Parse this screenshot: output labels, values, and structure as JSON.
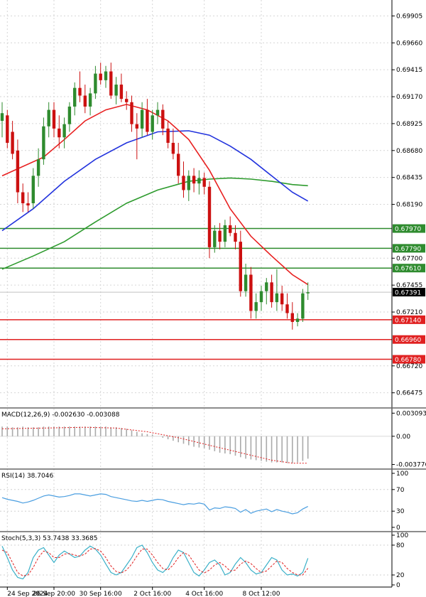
{
  "chart_data": {
    "type": "candlestick",
    "price_panel": {
      "ylim": [
        0.6635,
        0.7005
      ],
      "y_ticks": [
        "0.69905",
        "0.69660",
        "0.69415",
        "0.69170",
        "0.68925",
        "0.68680",
        "0.68435",
        "0.68190",
        "0.67700",
        "0.67455",
        "0.67210",
        "0.66720",
        "0.66475"
      ],
      "y_tick_values": [
        0.69905,
        0.6966,
        0.69415,
        0.6917,
        0.68925,
        0.6868,
        0.68435,
        0.6819,
        0.677,
        0.67455,
        0.6721,
        0.6672,
        0.66475
      ],
      "current_price": "0.67391",
      "current_price_value": 0.67391,
      "resistance_levels": [
        {
          "label": "0.67970",
          "value": 0.6797,
          "color": "#2e8b2e"
        },
        {
          "label": "0.67790",
          "value": 0.6779,
          "color": "#2e8b2e"
        },
        {
          "label": "0.67610",
          "value": 0.6761,
          "color": "#2e8b2e"
        }
      ],
      "support_levels": [
        {
          "label": "0.67140",
          "value": 0.6714,
          "color": "#e02020"
        },
        {
          "label": "0.66960",
          "value": 0.6696,
          "color": "#e02020"
        },
        {
          "label": "0.66780",
          "value": 0.6678,
          "color": "#e02020"
        }
      ],
      "candles": [
        [
          0.6895,
          0.6912,
          0.688,
          0.6902
        ],
        [
          0.69,
          0.6905,
          0.687,
          0.6875
        ],
        [
          0.6885,
          0.6895,
          0.686,
          0.6865
        ],
        [
          0.6868,
          0.6878,
          0.682,
          0.683
        ],
        [
          0.683,
          0.6838,
          0.6812,
          0.682
        ],
        [
          0.682,
          0.683,
          0.6812,
          0.6818
        ],
        [
          0.682,
          0.6852,
          0.6815,
          0.6845
        ],
        [
          0.6845,
          0.687,
          0.6835,
          0.686
        ],
        [
          0.686,
          0.6898,
          0.6855,
          0.689
        ],
        [
          0.689,
          0.6912,
          0.688,
          0.6905
        ],
        [
          0.6905,
          0.6912,
          0.688,
          0.6888
        ],
        [
          0.6888,
          0.69,
          0.687,
          0.688
        ],
        [
          0.688,
          0.6898,
          0.687,
          0.6892
        ],
        [
          0.6892,
          0.6912,
          0.6885,
          0.6908
        ],
        [
          0.6908,
          0.693,
          0.69,
          0.6925
        ],
        [
          0.6925,
          0.694,
          0.6912,
          0.6918
        ],
        [
          0.6918,
          0.6928,
          0.6902,
          0.6908
        ],
        [
          0.6908,
          0.6925,
          0.69,
          0.692
        ],
        [
          0.692,
          0.6945,
          0.6915,
          0.6938
        ],
        [
          0.6938,
          0.6948,
          0.6928,
          0.6932
        ],
        [
          0.6932,
          0.6945,
          0.6925,
          0.694
        ],
        [
          0.694,
          0.6948,
          0.6915,
          0.6918
        ],
        [
          0.6918,
          0.6935,
          0.691,
          0.6928
        ],
        [
          0.6928,
          0.6938,
          0.6912,
          0.6915
        ],
        [
          0.6915,
          0.6922,
          0.6905,
          0.6912
        ],
        [
          0.6912,
          0.6918,
          0.6885,
          0.6892
        ],
        [
          0.6892,
          0.6902,
          0.686,
          0.6888
        ],
        [
          0.6888,
          0.6912,
          0.688,
          0.6905
        ],
        [
          0.6905,
          0.6915,
          0.6882,
          0.6885
        ],
        [
          0.6885,
          0.6905,
          0.6878,
          0.69
        ],
        [
          0.69,
          0.6912,
          0.6892,
          0.6905
        ],
        [
          0.6905,
          0.691,
          0.6882,
          0.6888
        ],
        [
          0.6888,
          0.6895,
          0.687,
          0.6875
        ],
        [
          0.6875,
          0.6888,
          0.686,
          0.6865
        ],
        [
          0.6865,
          0.6875,
          0.6838,
          0.6845
        ],
        [
          0.6845,
          0.6858,
          0.6825,
          0.6832
        ],
        [
          0.6832,
          0.685,
          0.6822,
          0.6845
        ],
        [
          0.6845,
          0.6852,
          0.683,
          0.6838
        ],
        [
          0.6838,
          0.685,
          0.6828,
          0.6843
        ],
        [
          0.6843,
          0.6848,
          0.6828,
          0.6835
        ],
        [
          0.6835,
          0.684,
          0.677,
          0.678
        ],
        [
          0.678,
          0.68,
          0.6775,
          0.6795
        ],
        [
          0.6795,
          0.6802,
          0.6778,
          0.6785
        ],
        [
          0.6785,
          0.6805,
          0.678,
          0.68
        ],
        [
          0.68,
          0.6808,
          0.679,
          0.6793
        ],
        [
          0.6793,
          0.68,
          0.6778,
          0.6785
        ],
        [
          0.6785,
          0.6795,
          0.6735,
          0.674
        ],
        [
          0.674,
          0.6765,
          0.6735,
          0.6755
        ],
        [
          0.6755,
          0.6762,
          0.6715,
          0.6722
        ],
        [
          0.6722,
          0.6738,
          0.6715,
          0.673
        ],
        [
          0.673,
          0.6745,
          0.6722,
          0.674
        ],
        [
          0.674,
          0.6752,
          0.6728,
          0.6748
        ],
        [
          0.6748,
          0.6755,
          0.6725,
          0.673
        ],
        [
          0.673,
          0.676,
          0.6722,
          0.6738
        ],
        [
          0.6738,
          0.6745,
          0.6722,
          0.6728
        ],
        [
          0.6728,
          0.6738,
          0.6715,
          0.672
        ],
        [
          0.672,
          0.673,
          0.6705,
          0.6712
        ],
        [
          0.6712,
          0.672,
          0.6708,
          0.6715
        ],
        [
          0.6715,
          0.6742,
          0.6712,
          0.6738
        ],
        [
          0.6738,
          0.6748,
          0.6732,
          0.6739
        ]
      ],
      "ma_fast": [
        [
          0,
          0.6845
        ],
        [
          8,
          0.6862
        ],
        [
          12,
          0.6878
        ],
        [
          16,
          0.6895
        ],
        [
          20,
          0.6905
        ],
        [
          24,
          0.691
        ],
        [
          28,
          0.6905
        ],
        [
          32,
          0.6895
        ],
        [
          36,
          0.6878
        ],
        [
          40,
          0.685
        ],
        [
          44,
          0.6815
        ],
        [
          48,
          0.679
        ],
        [
          52,
          0.6772
        ],
        [
          56,
          0.6755
        ],
        [
          59,
          0.6746
        ]
      ],
      "ma_slow": [
        [
          0,
          0.6795
        ],
        [
          6,
          0.6815
        ],
        [
          12,
          0.684
        ],
        [
          18,
          0.686
        ],
        [
          24,
          0.6875
        ],
        [
          30,
          0.6885
        ],
        [
          36,
          0.6886
        ],
        [
          40,
          0.6882
        ],
        [
          44,
          0.6872
        ],
        [
          48,
          0.686
        ],
        [
          52,
          0.6845
        ],
        [
          56,
          0.683
        ],
        [
          59,
          0.6822
        ]
      ],
      "ma_long": [
        [
          0,
          0.676
        ],
        [
          6,
          0.6772
        ],
        [
          12,
          0.6785
        ],
        [
          18,
          0.6803
        ],
        [
          24,
          0.682
        ],
        [
          30,
          0.6832
        ],
        [
          36,
          0.684
        ],
        [
          40,
          0.6842
        ],
        [
          44,
          0.6843
        ],
        [
          48,
          0.6842
        ],
        [
          52,
          0.684
        ],
        [
          56,
          0.6837
        ],
        [
          59,
          0.6836
        ]
      ]
    },
    "macd_panel": {
      "label": "MACD(12,26,9) -0.002630 -0.003088",
      "y_ticks": [
        "0.003093",
        "0.00",
        "-0.003776"
      ],
      "y_tick_values": [
        0.003093,
        0.0,
        -0.003776
      ],
      "ylim": [
        -0.0042,
        0.0036
      ],
      "histogram": [
        0.0013,
        0.0013,
        0.0012,
        0.0012,
        0.0013,
        0.0012,
        0.0012,
        0.0012,
        0.0013,
        0.0013,
        0.0013,
        0.0013,
        0.0013,
        0.0013,
        0.0013,
        0.0013,
        0.0013,
        0.0013,
        0.0013,
        0.0013,
        0.0013,
        0.0012,
        0.0012,
        0.0011,
        0.001,
        0.0008,
        0.0006,
        0.0004,
        0.0003,
        0.0002,
        0.0,
        -0.0002,
        -0.0004,
        -0.0006,
        -0.0008,
        -0.001,
        -0.0012,
        -0.0014,
        -0.0015,
        -0.0016,
        -0.0018,
        -0.002,
        -0.0022,
        -0.0023,
        -0.0024,
        -0.0026,
        -0.0028,
        -0.003,
        -0.0031,
        -0.0032,
        -0.0033,
        -0.0034,
        -0.0035,
        -0.0035,
        -0.0035,
        -0.0036,
        -0.0036,
        -0.0035,
        -0.0033,
        -0.003
      ],
      "signal": [
        [
          0,
          0.001
        ],
        [
          8,
          0.0011
        ],
        [
          16,
          0.0012
        ],
        [
          22,
          0.0011
        ],
        [
          28,
          0.0006
        ],
        [
          34,
          -0.0002
        ],
        [
          40,
          -0.0012
        ],
        [
          46,
          -0.0022
        ],
        [
          52,
          -0.0032
        ],
        [
          56,
          -0.0036
        ],
        [
          59,
          -0.0036
        ]
      ]
    },
    "rsi_panel": {
      "label": "RSI(14) 38.7046",
      "y_ticks": [
        "100",
        "70",
        "30",
        "0"
      ],
      "y_tick_values": [
        100,
        70,
        30,
        0
      ],
      "ylim": [
        0,
        100
      ],
      "values": [
        55,
        52,
        50,
        48,
        45,
        47,
        50,
        54,
        58,
        60,
        58,
        56,
        57,
        59,
        62,
        62,
        60,
        58,
        60,
        62,
        61,
        57,
        55,
        53,
        51,
        49,
        48,
        50,
        48,
        50,
        52,
        51,
        48,
        46,
        44,
        42,
        44,
        43,
        45,
        43,
        32,
        36,
        35,
        38,
        37,
        35,
        28,
        33,
        26,
        30,
        32,
        34,
        29,
        33,
        30,
        28,
        25,
        27,
        34,
        38.7
      ]
    },
    "stoch_panel": {
      "label": "Stoch(5,3,3) 53.7438 33.3685",
      "y_ticks": [
        "100",
        "80",
        "20",
        "0"
      ],
      "y_tick_values": [
        100,
        80,
        20,
        0
      ],
      "ylim": [
        0,
        100
      ],
      "k": [
        78,
        55,
        30,
        15,
        12,
        25,
        55,
        70,
        75,
        60,
        45,
        60,
        68,
        62,
        55,
        58,
        70,
        78,
        72,
        60,
        42,
        25,
        20,
        25,
        40,
        55,
        75,
        80,
        65,
        45,
        30,
        25,
        35,
        55,
        70,
        65,
        45,
        25,
        18,
        30,
        45,
        50,
        40,
        20,
        25,
        42,
        55,
        45,
        30,
        22,
        25,
        40,
        55,
        50,
        30,
        20,
        22,
        18,
        25,
        53.7
      ],
      "d": [
        70,
        65,
        45,
        25,
        18,
        20,
        35,
        55,
        68,
        65,
        55,
        55,
        62,
        63,
        60,
        58,
        62,
        72,
        73,
        68,
        55,
        38,
        27,
        24,
        30,
        42,
        58,
        72,
        72,
        60,
        45,
        33,
        30,
        40,
        55,
        65,
        60,
        45,
        30,
        24,
        30,
        40,
        45,
        38,
        28,
        30,
        42,
        48,
        43,
        33,
        25,
        28,
        38,
        48,
        45,
        33,
        25,
        20,
        20,
        33.4
      ]
    },
    "x_labels": [
      {
        "text": "24 Sep 2024",
        "index": 1
      },
      {
        "text": "26 Sep 20:00",
        "index": 10
      },
      {
        "text": "30 Sep 16:00",
        "index": 19
      },
      {
        "text": "2 Oct 16:00",
        "index": 29
      },
      {
        "text": "4 Oct 16:00",
        "index": 39
      },
      {
        "text": "8 Oct 12:00",
        "index": 50
      }
    ],
    "colors": {
      "bull": "#2e8b2e",
      "bear": "#cc1010",
      "ma_fast": "#e82020",
      "ma_slow": "#2233dd",
      "ma_long": "#2e9b2e",
      "rsi": "#4a9ee0",
      "stoch_k": "#3ab0c8",
      "stoch_d": "#e02020",
      "macd_signal": "#e02020",
      "macd_hist": "#aaaaaa",
      "current_price_bg": "#000000"
    }
  }
}
